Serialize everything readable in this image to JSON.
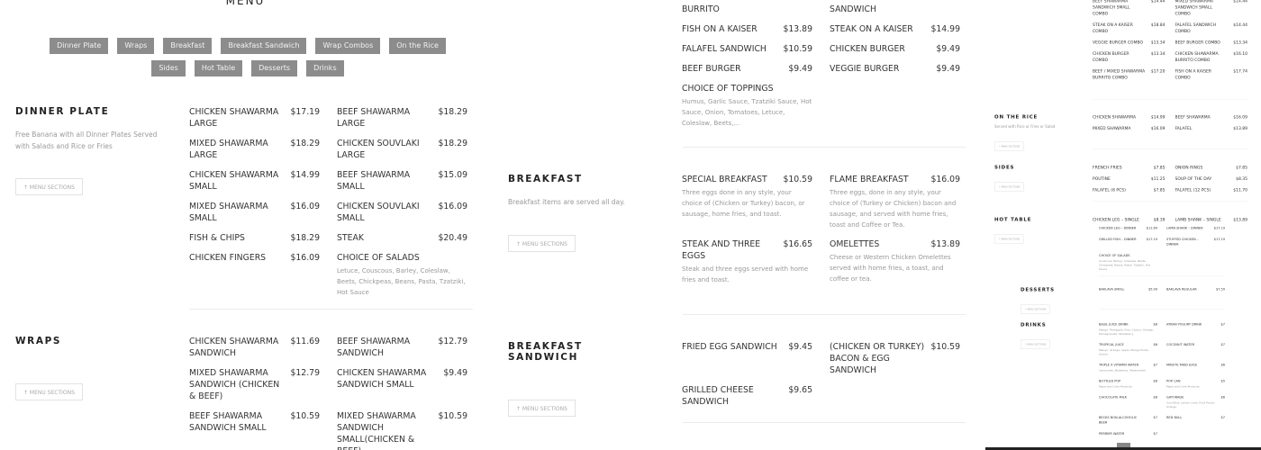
{
  "left": {
    "menu_title": "MENU",
    "nav": [
      "Dinner Plate",
      "Wraps",
      "Breakfast",
      "Breakfast Sandwich",
      "Wrap Combos",
      "On the Rice",
      "Sides",
      "Hot Table",
      "Desserts",
      "Drinks"
    ],
    "sections": [
      {
        "heading": "DINNER PLATE",
        "desc": "Free Banana with all Dinner Plates Served with Salads and Rice or Fries",
        "button": "↑ MENU SECTIONS",
        "items": [
          {
            "name": "Chicken Shawarma Large",
            "price": "$17.19"
          },
          {
            "name": "Beef Shawarma Large",
            "price": "$18.29"
          },
          {
            "name": "Mixed Shawarma Large",
            "price": "$18.29"
          },
          {
            "name": "Chicken Souvlaki Large",
            "price": "$18.29"
          },
          {
            "name": "Chicken Shawarma Small",
            "price": "$14.99"
          },
          {
            "name": "Beef Shawarma Small",
            "price": "$15.09"
          },
          {
            "name": "Mixed Shawarma Small",
            "price": "$16.09"
          },
          {
            "name": "Chicken Souvlaki Small",
            "price": "$16.09"
          },
          {
            "name": "Fish & Chips",
            "price": "$18.29"
          },
          {
            "name": "Steak",
            "price": "$20.49"
          },
          {
            "name": "Chicken Fingers",
            "price": "$16.09"
          },
          {
            "name": "Choice of Salads",
            "desc": "Letuce, Couscous, Barley, Coleslaw, Beets, Chickpeas, Beans, Pasta, Tzatziki, Hot Sauce"
          }
        ]
      },
      {
        "heading": "WRAPS",
        "button": "↑ MENU SECTIONS",
        "items": [
          {
            "name": "Chicken Shawarma Sandwich",
            "price": "$11.69"
          },
          {
            "name": "Beef Shawarma Sandwich",
            "price": "$12.79"
          },
          {
            "name": "Mixed Shawarma Sandwich (Chicken & Beef)",
            "price": "$12.79"
          },
          {
            "name": "Chicken Shawarma Sandwich Small",
            "price": "$9.49"
          },
          {
            "name": "Beef Shawarma Sandwich Small",
            "price": "$10.59"
          },
          {
            "name": "Mixed Shawarma Sandwich Small(Chicken & Beef)",
            "price": "$10.59"
          }
        ]
      }
    ]
  },
  "middle": {
    "sections": [
      {
        "items": [
          {
            "name": "Burrito"
          },
          {
            "name": "Sandwich"
          },
          {
            "name": "Fish on a Kaiser",
            "price": "$13.89"
          },
          {
            "name": "Steak on a Kaiser",
            "price": "$14.99"
          },
          {
            "name": "Falafel Sandwich",
            "price": "$10.59"
          },
          {
            "name": "Chicken Burger",
            "price": "$9.49"
          },
          {
            "name": "Beef Burger",
            "price": "$9.49"
          },
          {
            "name": "Veggie Burger",
            "price": "$9.49"
          },
          {
            "name": "Choice of Toppings",
            "desc": "Humus, Garlic Sauce, Tzatziki Sauce, Hot Sauce, Onion, Tomatoes, Letuce, Coleslaw, Beets,..."
          }
        ]
      },
      {
        "heading": "BREAKFAST",
        "desc": "Breakfast items are served all day.",
        "button": "↑ MENU SECTIONS",
        "items": [
          {
            "name": "Special Breakfast",
            "price": "$10.59",
            "desc": "Three eggs done in any style, your choice of (Chicken or Turkey) bacon, or sausage, home fries, and toast."
          },
          {
            "name": "Flame Breakfast",
            "price": "$16.09",
            "desc": "Three eggs, done in any style, your choice of (Turkey or Chicken) bacon and sausage, and served with home fries, toast and Coffee or Tea."
          },
          {
            "name": "Steak and Three Eggs",
            "price": "$16.65",
            "desc": "Steak and three eggs served with home fries and toast."
          },
          {
            "name": "Omelettes",
            "price": "$13.89",
            "desc": "Cheese or Western Chicken Omelettes served with home fries, a toast, and coffee or tea."
          }
        ]
      },
      {
        "heading": "BREAKFAST SANDWICH",
        "button": "↑ MENU SECTIONS",
        "items": [
          {
            "name": "Fried Egg Sandwich",
            "price": "$9.45"
          },
          {
            "name": "(Chicken or Turkey) Bacon & Egg Sandwich",
            "price": "$10.59"
          },
          {
            "name": "Grilled Cheese Sandwich",
            "price": "$9.65"
          }
        ]
      }
    ]
  },
  "right": {
    "sections": [
      {
        "items": [
          {
            "name": "Beef Shawarma Sandwich Small Combo",
            "price": "$14.44"
          },
          {
            "name": "Mixed Shawarma Sandwich Small Combo",
            "price": "$14.44"
          },
          {
            "name": "Steak on a Kaiser Combo",
            "price": "$18.84"
          },
          {
            "name": "Falafel Sandwich Combo",
            "price": "$14.44"
          },
          {
            "name": "Veggie Burger Combo",
            "price": "$13.34"
          },
          {
            "name": "Beef Burger Combo",
            "price": "$13.34"
          },
          {
            "name": "Chicken Burger Combo",
            "price": "$13.34"
          },
          {
            "name": "Chicken Shawarma Burrito Combo",
            "price": "$16.10"
          },
          {
            "name": "Beef / Mixed Shawarma Burrito Combo",
            "price": "$17.20"
          },
          {
            "name": "Fish on a Kaiser Combo",
            "price": "$17.74"
          }
        ]
      },
      {
        "heading": "ON THE RICE",
        "desc": "Served with Rice or Fries or Salad",
        "button": "↑ MENU SECTIONS",
        "items": [
          {
            "name": "Chicken Shawarma",
            "price": "$14.99"
          },
          {
            "name": "Beef Shawarma",
            "price": "$16.09"
          },
          {
            "name": "Mixed Shawarma",
            "price": "$16.09"
          },
          {
            "name": "Falafel",
            "price": "$13.89"
          }
        ]
      },
      {
        "heading": "SIDES",
        "button": "↑ MENU SECTIONS",
        "items": [
          {
            "name": "French Fries",
            "price": "$7.85"
          },
          {
            "name": "Onion Rings",
            "price": "$7.85"
          },
          {
            "name": "Poutine",
            "price": "$11.25"
          },
          {
            "name": "Soup of the Day",
            "price": "$8.35"
          },
          {
            "name": "Falafel (6 PCS)",
            "price": "$7.85"
          },
          {
            "name": "Falafel (12 PCS)",
            "price": "$11.70"
          }
        ]
      },
      {
        "heading": "HOT TABLE",
        "button": "↑ MENU SECTIONS",
        "items": [
          {
            "name": "Chicken Leg – Single",
            "price": "$8.39"
          },
          {
            "name": "Lamb Shank – Single",
            "price": "$13.89"
          }
        ]
      },
      {
        "items": [
          {
            "name": "Chicken Leg – Dinner",
            "price": "$11.69"
          },
          {
            "name": "Lamb Shank – Dinner",
            "price": "$17.19"
          },
          {
            "name": "Grilled Fish – Dinner",
            "price": "$17.19"
          },
          {
            "name": "Stuffed Chicken – Dinner",
            "price": "$17.19"
          },
          {
            "name": "Choice of Salads",
            "desc": "Couscous, Barley, Coleslaw, Beets, Chickpeas, Beans, Pasta, Tzatziki, Hot Sauce"
          }
        ]
      },
      {
        "heading": "DESSERTS",
        "button": "↑ MENU SECTIONS",
        "items": [
          {
            "name": "Baklava Small",
            "price": "$5.99"
          },
          {
            "name": "Baklava Regular",
            "price": "$7.59"
          }
        ]
      },
      {
        "heading": "DRINKS",
        "button": "↑ MENU SECTIONS",
        "items": [
          {
            "name": "Basil Juice Drink",
            "price": "$6",
            "desc": "Mango, Pineapple, Kiwi, Cactus, Orange, Pomegranate, Strawberry"
          },
          {
            "name": "Ayran Yogurt Drink",
            "price": "$7"
          },
          {
            "name": "Tropical Juice",
            "price": "$6",
            "desc": "Mango, Orange, Apple, Mango Fanta, Guava"
          },
          {
            "name": "Coconut Water",
            "price": "$7"
          },
          {
            "name": "Triple X Vitamin Water",
            "price": "$7",
            "desc": "Lemonade, Blueberry, Watermelon"
          },
          {
            "name": "Minute Maid Juice",
            "price": "$6"
          },
          {
            "name": "Bottled Pop",
            "price": "$6",
            "desc": "Pepsi and Coke Products"
          },
          {
            "name": "Pop Can",
            "price": "$5",
            "desc": "Pepsi and Coke Products"
          },
          {
            "name": "Chocolate Milk",
            "price": "$6"
          },
          {
            "name": "Gatorade",
            "price": "$6",
            "desc": "Cool Blue, Lemon Lime, Fruit Punch, Orange"
          },
          {
            "name": "Becks Non-Alcoholic Beer",
            "price": "$7"
          },
          {
            "name": "Red Bull",
            "price": "$7"
          },
          {
            "name": "Perrier Water",
            "price": "$7"
          }
        ]
      }
    ]
  },
  "colors": {
    "nav_button": "#8c8c8c",
    "text": "#333333",
    "muted": "#999999"
  }
}
